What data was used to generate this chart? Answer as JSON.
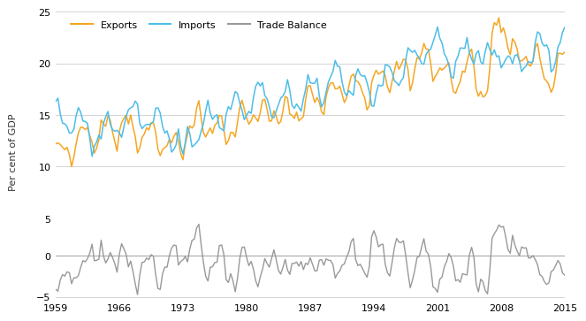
{
  "exports_color": "#F5A623",
  "imports_color": "#4DBDE8",
  "balance_color": "#999999",
  "background_color": "#FFFFFF",
  "grid_color": "#CCCCCC",
  "ylabel": "Per cent of GDP",
  "xticks": [
    1959,
    1966,
    1973,
    1980,
    1987,
    1994,
    2001,
    2008,
    2015
  ],
  "upper_yticks": [
    5,
    10,
    15,
    20,
    25
  ],
  "lower_yticks": [
    -5,
    0
  ],
  "upper_ylim": [
    5,
    25
  ],
  "lower_ylim": [
    -5.5,
    4.5
  ],
  "legend_labels": [
    "Exports",
    "Imports",
    "Trade Balance"
  ],
  "xmin": 1959,
  "xmax": 2015
}
